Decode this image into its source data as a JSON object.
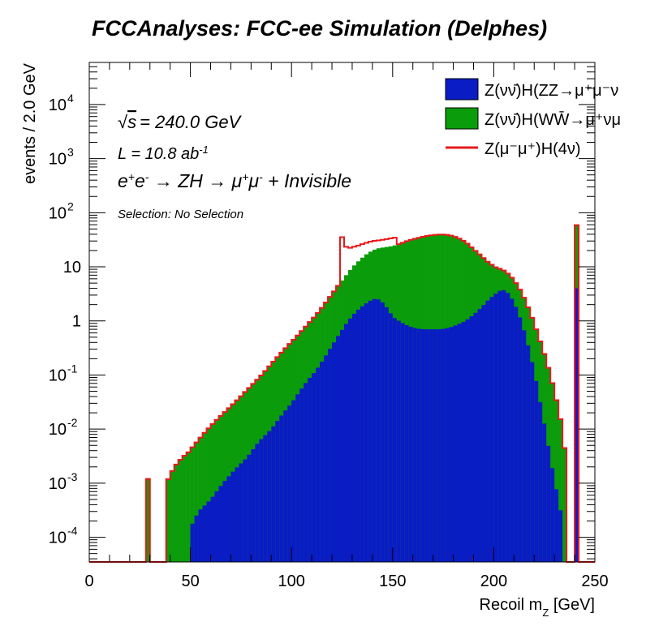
{
  "header": {
    "title": "FCCAnalyses: FCC-ee Simulation (Delphes)"
  },
  "annotations": {
    "sqrt_s_value": "= 240.0 GeV",
    "lumi_prefix": "L = 10.8 ab",
    "lumi_exp": "-1",
    "selection": "Selection: No Selection"
  },
  "legend": {
    "items": [
      "Z(νν̄)H(ZZ→μ⁺μ⁻ν",
      "Z(νν̄)H(WW̄→μ⁺νμ",
      "Z(μ⁻μ⁺)H(4ν)"
    ]
  },
  "chart_data": {
    "type": "histogram",
    "title": "FCCAnalyses: FCC-ee Simulation (Delphes)",
    "xlabel": "Recoil m_Z [GeV]",
    "ylabel": "events / 2.0 GeV",
    "xlim": [
      0,
      250
    ],
    "ylim": [
      3.5e-05,
      60000.0
    ],
    "y_scale": "log",
    "bin_width": 2,
    "stacked": true,
    "legend_position": "top-right",
    "grid": false,
    "x_ticks": [
      "0",
      "50",
      "100",
      "150",
      "200",
      "250"
    ],
    "y_ticks": [
      {
        "value": 0.0001,
        "label": "10",
        "exp": "-4"
      },
      {
        "value": 0.001,
        "label": "10",
        "exp": "-3"
      },
      {
        "value": 0.01,
        "label": "10",
        "exp": "-2"
      },
      {
        "value": 0.1,
        "label": "10",
        "exp": "-1"
      },
      {
        "value": 1,
        "label": "1",
        "exp": ""
      },
      {
        "value": 10,
        "label": "10",
        "exp": ""
      },
      {
        "value": 100,
        "label": "10",
        "exp": "2"
      },
      {
        "value": 1000,
        "label": "10",
        "exp": "3"
      },
      {
        "value": 10000,
        "label": "10",
        "exp": "4"
      }
    ],
    "series": [
      {
        "name": "Z(νν̄)H(ZZ→μ⁺μ⁻ν",
        "style": "filled",
        "color": "#0a1cc4",
        "points": [
          [
            50,
            0.00015
          ],
          [
            54,
            0.0003
          ],
          [
            60,
            0.0005
          ],
          [
            66,
            0.001
          ],
          [
            72,
            0.0018
          ],
          [
            78,
            0.003
          ],
          [
            84,
            0.006
          ],
          [
            90,
            0.01
          ],
          [
            96,
            0.02
          ],
          [
            100,
            0.03
          ],
          [
            104,
            0.05
          ],
          [
            108,
            0.08
          ],
          [
            112,
            0.12
          ],
          [
            116,
            0.2
          ],
          [
            120,
            0.35
          ],
          [
            124,
            0.6
          ],
          [
            128,
            1.0
          ],
          [
            132,
            1.5
          ],
          [
            136,
            2.0
          ],
          [
            140,
            2.5
          ],
          [
            142,
            2.6
          ],
          [
            144,
            2.4
          ],
          [
            146,
            2.0
          ],
          [
            148,
            1.6
          ],
          [
            150,
            1.2
          ],
          [
            154,
            0.95
          ],
          [
            158,
            0.8
          ],
          [
            162,
            0.72
          ],
          [
            166,
            0.7
          ],
          [
            170,
            0.7
          ],
          [
            174,
            0.7
          ],
          [
            178,
            0.75
          ],
          [
            182,
            0.85
          ],
          [
            186,
            1.0
          ],
          [
            190,
            1.3
          ],
          [
            194,
            1.8
          ],
          [
            198,
            2.6
          ],
          [
            202,
            3.4
          ],
          [
            204,
            3.8
          ],
          [
            206,
            3.6
          ],
          [
            208,
            3.0
          ],
          [
            210,
            2.2
          ],
          [
            212,
            1.5
          ],
          [
            214,
            0.9
          ],
          [
            216,
            0.5
          ],
          [
            218,
            0.25
          ],
          [
            220,
            0.12
          ],
          [
            222,
            0.05
          ],
          [
            224,
            0.02
          ],
          [
            226,
            0.008
          ],
          [
            228,
            0.003
          ],
          [
            230,
            0.0012
          ],
          [
            232,
            0.0005
          ],
          [
            234,
            0.0002
          ]
        ],
        "spike": {
          "x": 240,
          "value": 4
        }
      },
      {
        "name": "Z(νν̄)H(WW̄→μ⁺νμ",
        "style": "filled",
        "color": "#0a9c0a",
        "points": [
          [
            38,
            0.001
          ],
          [
            42,
            0.002
          ],
          [
            46,
            0.003
          ],
          [
            50,
            0.004
          ],
          [
            54,
            0.006
          ],
          [
            58,
            0.009
          ],
          [
            62,
            0.013
          ],
          [
            66,
            0.018
          ],
          [
            70,
            0.025
          ],
          [
            74,
            0.035
          ],
          [
            78,
            0.05
          ],
          [
            82,
            0.07
          ],
          [
            86,
            0.1
          ],
          [
            90,
            0.15
          ],
          [
            94,
            0.22
          ],
          [
            98,
            0.32
          ],
          [
            102,
            0.45
          ],
          [
            106,
            0.65
          ],
          [
            110,
            0.95
          ],
          [
            114,
            1.4
          ],
          [
            118,
            2.2
          ],
          [
            122,
            3.5
          ],
          [
            126,
            5.5
          ],
          [
            130,
            8.5
          ],
          [
            134,
            12
          ],
          [
            138,
            16
          ],
          [
            142,
            19
          ],
          [
            146,
            21
          ],
          [
            150,
            23
          ],
          [
            154,
            26
          ],
          [
            158,
            30
          ],
          [
            162,
            33
          ],
          [
            166,
            36
          ],
          [
            170,
            38
          ],
          [
            174,
            39
          ],
          [
            178,
            38
          ],
          [
            182,
            34
          ],
          [
            186,
            28
          ],
          [
            190,
            20
          ],
          [
            194,
            14
          ],
          [
            198,
            9
          ],
          [
            202,
            6
          ],
          [
            206,
            4.5
          ],
          [
            210,
            3.5
          ],
          [
            214,
            2.4
          ],
          [
            218,
            1.2
          ],
          [
            222,
            0.5
          ],
          [
            226,
            0.18
          ],
          [
            230,
            0.05
          ],
          [
            234,
            0.01
          ],
          [
            236,
            0.002
          ]
        ],
        "spike": {
          "x": 240,
          "value": 55
        }
      },
      {
        "name": "Z(μ⁻μ⁺)H(4ν)",
        "style": "line",
        "color": "#e8191c",
        "points": [
          [
            124,
            50
          ],
          [
            126,
            25
          ],
          [
            128,
            22
          ],
          [
            132,
            24
          ],
          [
            136,
            27
          ],
          [
            140,
            30
          ],
          [
            144,
            31
          ],
          [
            148,
            33
          ],
          [
            152,
            35
          ]
        ]
      }
    ],
    "isolated_bins": [
      {
        "x": 28,
        "value": 0.0012
      }
    ]
  }
}
